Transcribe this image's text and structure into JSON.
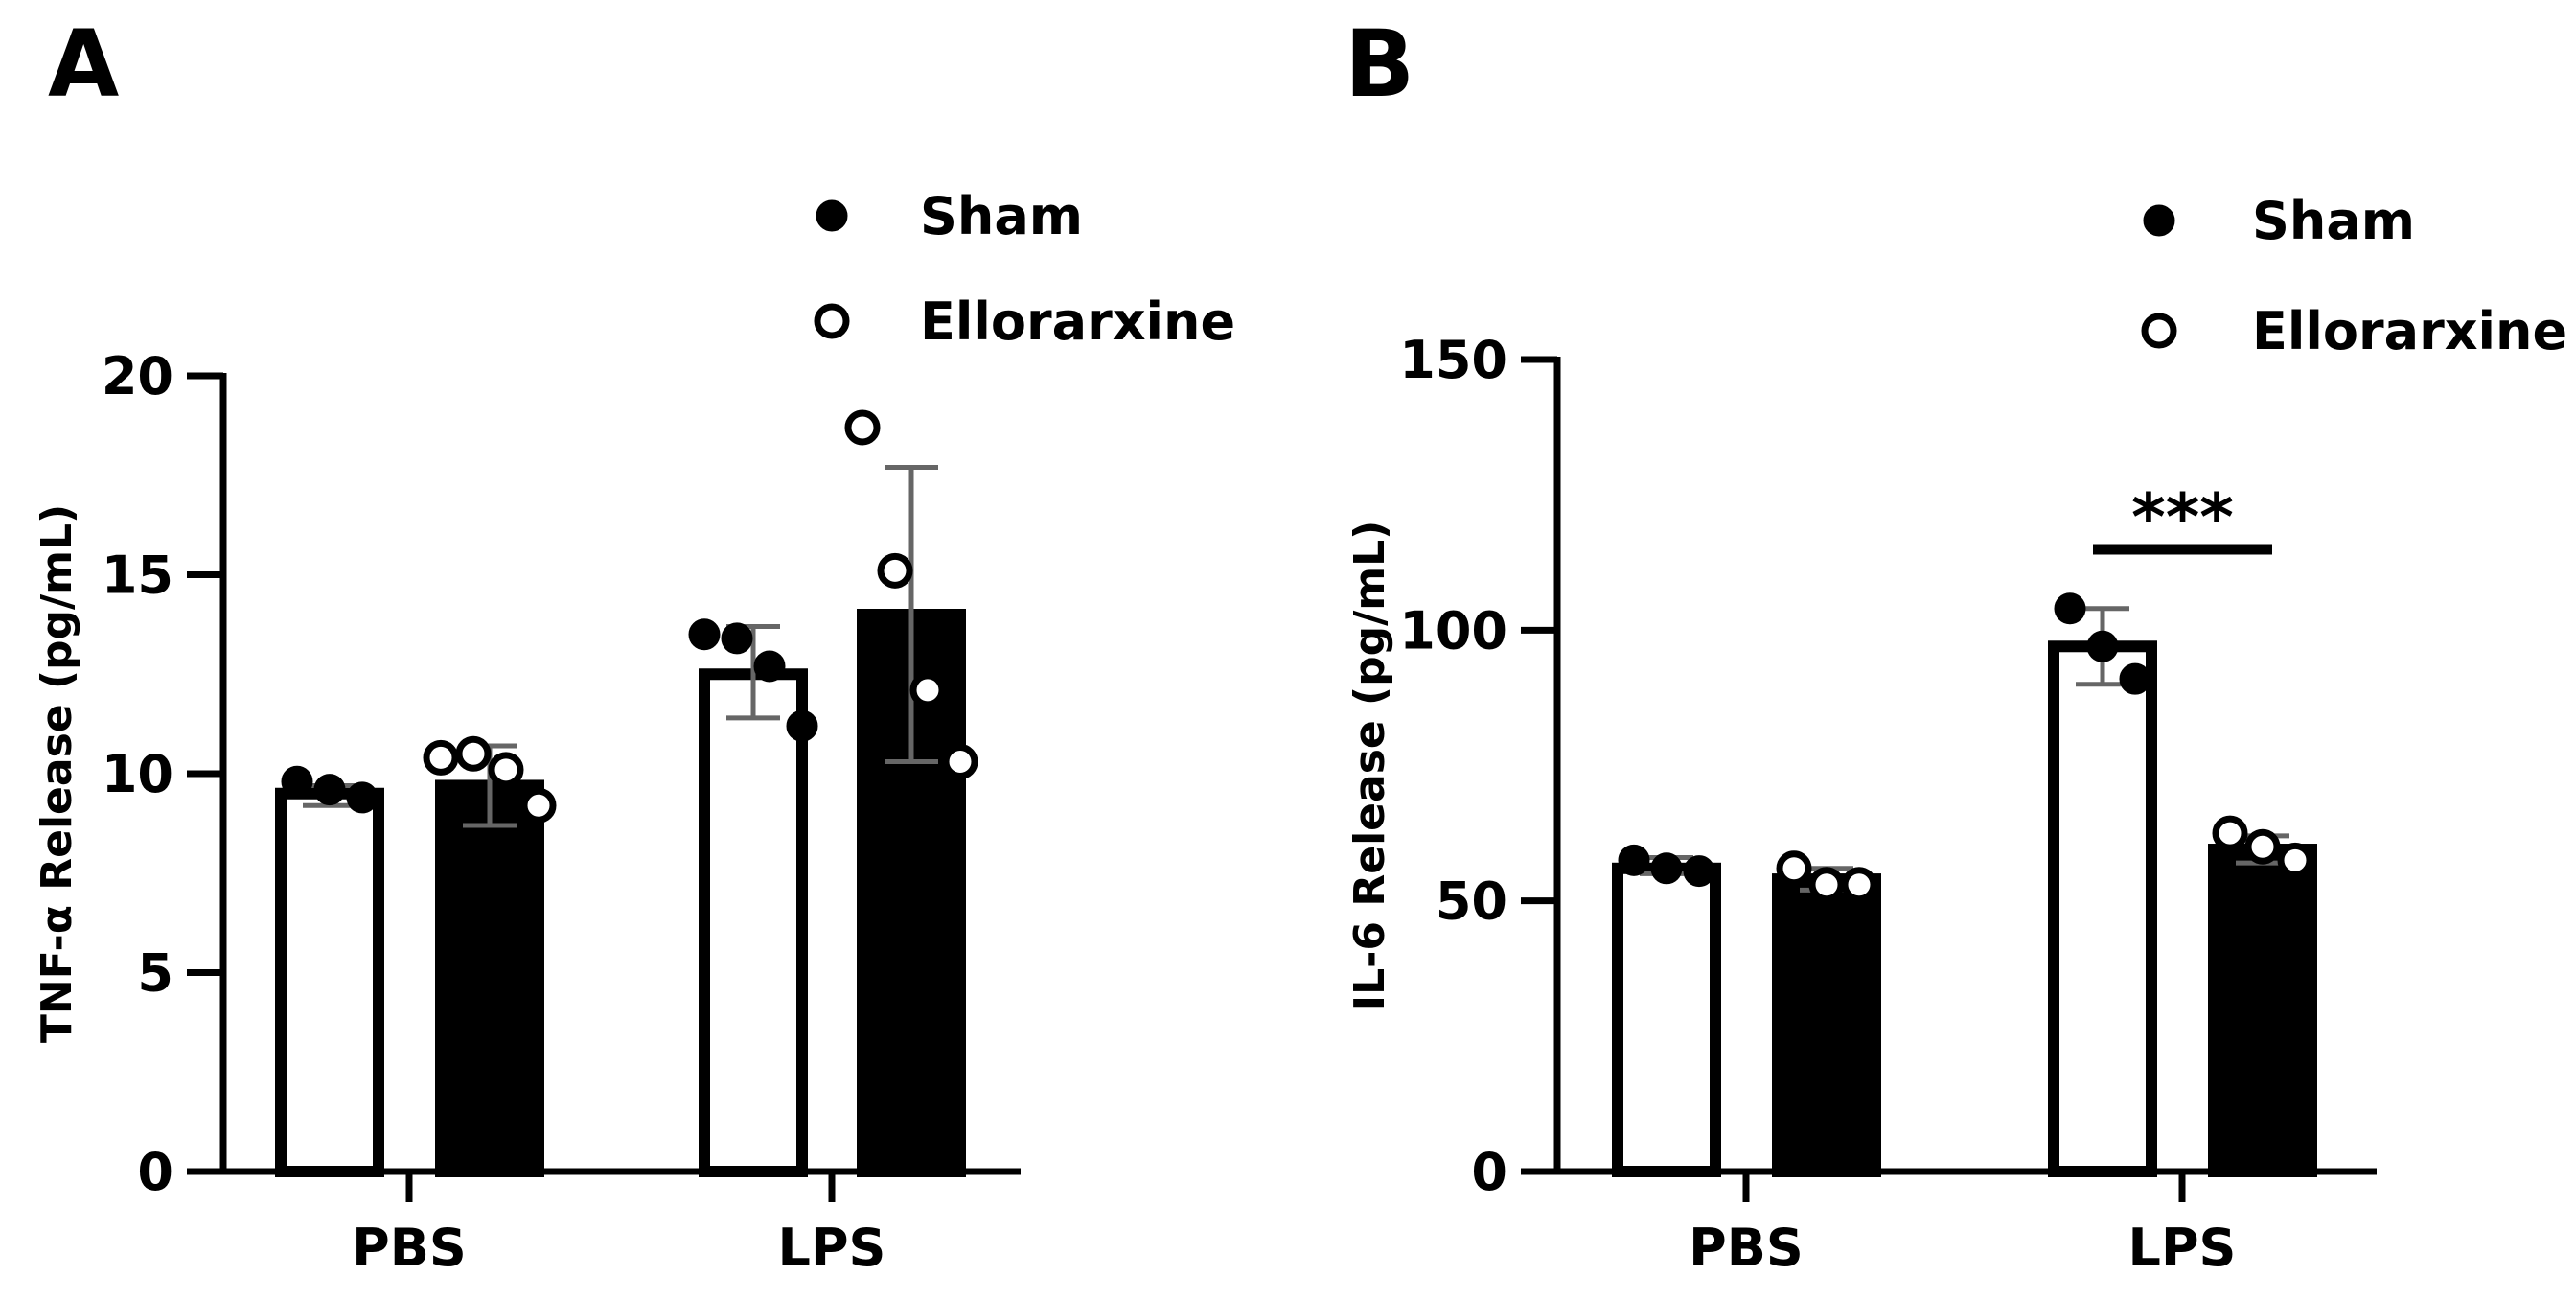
{
  "chart_data": [
    {
      "panel": "A",
      "type": "bar",
      "ylabel": "TNF-α Release (pg/mL)",
      "ylim": [
        0,
        20
      ],
      "yticks": [
        "0",
        "5",
        "10",
        "15",
        "20"
      ],
      "categories": [
        "PBS",
        "LPS"
      ],
      "legend": {
        "placement": "top-right",
        "entries": [
          {
            "name": "Sham",
            "marker": "filled-circle"
          },
          {
            "name": "Ellorarxine",
            "marker": "open-circle"
          }
        ]
      },
      "bars": [
        {
          "category": "PBS",
          "fill": "white",
          "mean": 9.5,
          "err_low": 9.2,
          "err_high": 9.7,
          "points": [
            9.8,
            9.6,
            9.4
          ],
          "point_style": "filled"
        },
        {
          "category": "PBS",
          "fill": "black",
          "mean": 9.7,
          "err_low": 8.7,
          "err_high": 10.7,
          "points": [
            10.4,
            10.5,
            10.1,
            9.2
          ],
          "point_style": "open"
        },
        {
          "category": "LPS",
          "fill": "white",
          "mean": 12.5,
          "err_low": 11.4,
          "err_high": 13.7,
          "points": [
            13.5,
            13.4,
            12.7,
            11.2
          ],
          "point_style": "filled"
        },
        {
          "category": "LPS",
          "fill": "black",
          "mean": 14.0,
          "err_low": 10.3,
          "err_high": 17.7,
          "points": [
            18.7,
            15.1,
            12.1,
            10.3
          ],
          "point_style": "open"
        }
      ],
      "annotations": []
    },
    {
      "panel": "B",
      "type": "bar",
      "ylabel": "IL-6 Release (pg/mL)",
      "ylim": [
        0,
        150
      ],
      "yticks": [
        "0",
        "50",
        "100",
        "150"
      ],
      "categories": [
        "PBS",
        "LPS"
      ],
      "legend": {
        "placement": "top-right",
        "entries": [
          {
            "name": "Sham",
            "marker": "filled-circle"
          },
          {
            "name": "Ellorarxine",
            "marker": "open-circle"
          }
        ]
      },
      "bars": [
        {
          "category": "PBS",
          "fill": "white",
          "mean": 56,
          "err_low": 55,
          "err_high": 58,
          "points": [
            57.5,
            56,
            55.5
          ],
          "point_style": "filled"
        },
        {
          "category": "PBS",
          "fill": "black",
          "mean": 54,
          "err_low": 52,
          "err_high": 56,
          "points": [
            56,
            53,
            53
          ],
          "point_style": "open"
        },
        {
          "category": "LPS",
          "fill": "white",
          "mean": 97,
          "err_low": 90,
          "err_high": 104,
          "points": [
            104,
            97,
            91
          ],
          "point_style": "filled"
        },
        {
          "category": "LPS",
          "fill": "black",
          "mean": 59.5,
          "err_low": 57,
          "err_high": 62,
          "points": [
            62.5,
            60,
            57.5
          ],
          "point_style": "open"
        }
      ],
      "annotations": [
        {
          "text": "***",
          "category": "LPS"
        }
      ]
    }
  ]
}
